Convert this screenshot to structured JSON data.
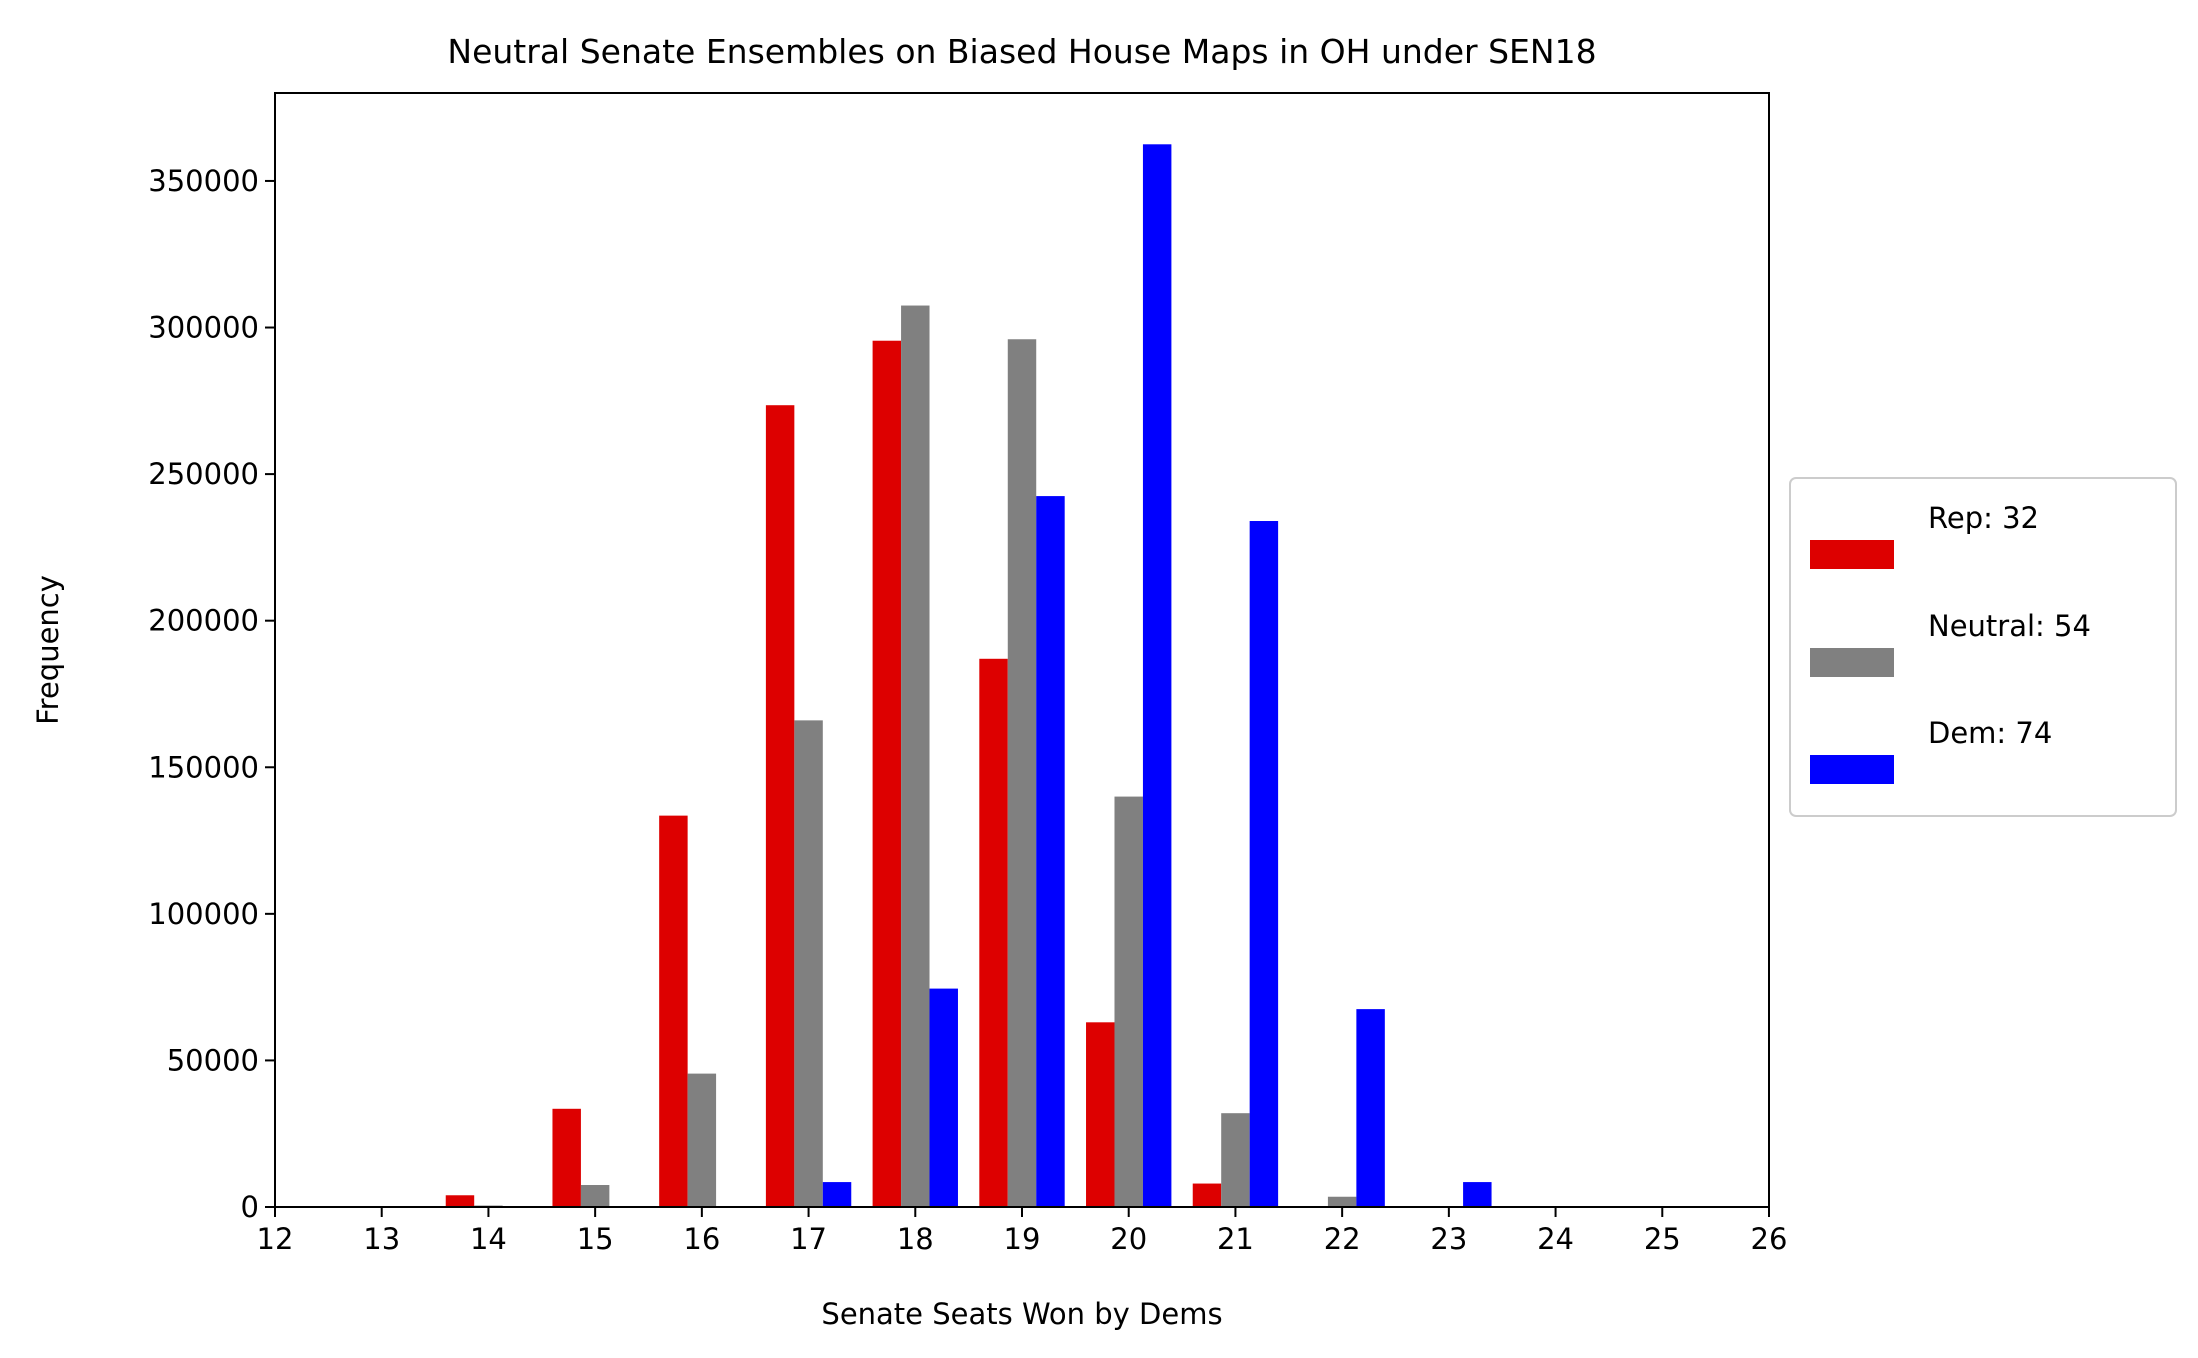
{
  "chart_data": {
    "type": "bar",
    "title": "Neutral Senate Ensembles on Biased House Maps in OH under SEN18",
    "xlabel": "Senate Seats Won by Dems",
    "ylabel": "Frequency",
    "xlim": [
      12,
      26
    ],
    "ylim": [
      0,
      380000
    ],
    "x_ticks": [
      12,
      13,
      14,
      15,
      16,
      17,
      18,
      19,
      20,
      21,
      22,
      23,
      24,
      25,
      26
    ],
    "y_ticks": [
      0,
      50000,
      100000,
      150000,
      200000,
      250000,
      300000,
      350000
    ],
    "categories": [
      14,
      15,
      16,
      17,
      18,
      19,
      20,
      21,
      22,
      23
    ],
    "series": [
      {
        "name": "Rep: 32",
        "color": "#dd0000",
        "values": [
          4000,
          33500,
          133500,
          273500,
          295500,
          187000,
          63000,
          8000,
          0,
          0
        ]
      },
      {
        "name": "Neutral: 54",
        "color": "#808080",
        "values": [
          500,
          7500,
          45500,
          166000,
          307500,
          296000,
          140000,
          32000,
          3500,
          0
        ]
      },
      {
        "name": "Dem: 74",
        "color": "#0000ff",
        "values": [
          0,
          0,
          0,
          8500,
          74500,
          242500,
          362500,
          234000,
          67500,
          8500
        ]
      }
    ],
    "legend_position": "center right, outside plot",
    "grid": false
  }
}
